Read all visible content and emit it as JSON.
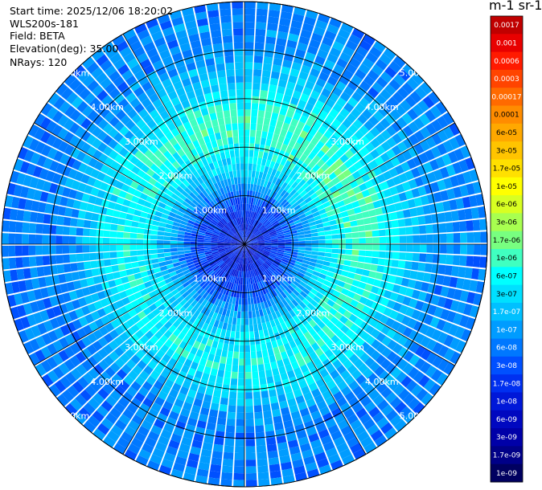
{
  "header": {
    "start_time": "Start time: 2025/12/06 18:20:02",
    "instrument": "WLS200s-181",
    "field": "Field: BETA",
    "elevation": "Elevation(deg): 35.00",
    "nrays": "NRays: 120"
  },
  "colorbar": {
    "unit_title": "m-1 sr-1",
    "ticks": [
      "0.0017",
      "0.001",
      "0.0006",
      "0.0003",
      "0.00017",
      "0.0001",
      "6e-05",
      "3e-05",
      "1.7e-05",
      "1e-05",
      "6e-06",
      "3e-06",
      "1.7e-06",
      "1e-06",
      "6e-07",
      "3e-07",
      "1.7e-07",
      "1e-07",
      "6e-08",
      "3e-08",
      "1.7e-08",
      "1e-08",
      "6e-09",
      "3e-09",
      "1.7e-09",
      "1e-09"
    ],
    "colors": [
      "#c00000",
      "#e80000",
      "#ff1a00",
      "#ff4400",
      "#ff6a00",
      "#ff8c00",
      "#ffa800",
      "#ffc400",
      "#ffe000",
      "#ffff00",
      "#d8ff22",
      "#a8ff50",
      "#78ff80",
      "#40ffc0",
      "#00ffff",
      "#00e0ff",
      "#00c0ff",
      "#009cff",
      "#0078ff",
      "#0050ff",
      "#0030f0",
      "#0018d8",
      "#0008c0",
      "#0000a8",
      "#000088",
      "#000060"
    ]
  },
  "chart_data": {
    "type": "heatmap",
    "projection": "polar (PPI scan)",
    "field": "BETA",
    "elevation_deg": 35.0,
    "n_rays": 120,
    "range_rings_km": [
      1.0,
      2.0,
      3.0,
      4.0,
      5.0
    ],
    "ring_labels": [
      "1.00km",
      "2.00km",
      "3.00km",
      "4.00km",
      "5.00km"
    ],
    "max_range_km": 5.0,
    "azimuth_spokes_deg": [
      0,
      30,
      60,
      90,
      120,
      150,
      180,
      210,
      240,
      270,
      300,
      330
    ],
    "colorscale": "log10 from 1e-09 to 0.0017",
    "approx_profile": [
      {
        "range_km": 0.5,
        "beta": 1.5e-08
      },
      {
        "range_km": 1.0,
        "beta": 4e-08
      },
      {
        "range_km": 1.5,
        "beta": 2e-07
      },
      {
        "range_km": 2.0,
        "beta": 5e-07
      },
      {
        "range_km": 2.5,
        "beta": 7e-07
      },
      {
        "range_km": 3.0,
        "beta": 4e-07
      },
      {
        "range_km": 3.5,
        "beta": 1.5e-07
      },
      {
        "range_km": 4.0,
        "beta": 8e-08
      },
      {
        "range_km": 4.5,
        "beta": 8e-08
      },
      {
        "range_km": 5.0,
        "beta": 6e-08
      }
    ]
  }
}
